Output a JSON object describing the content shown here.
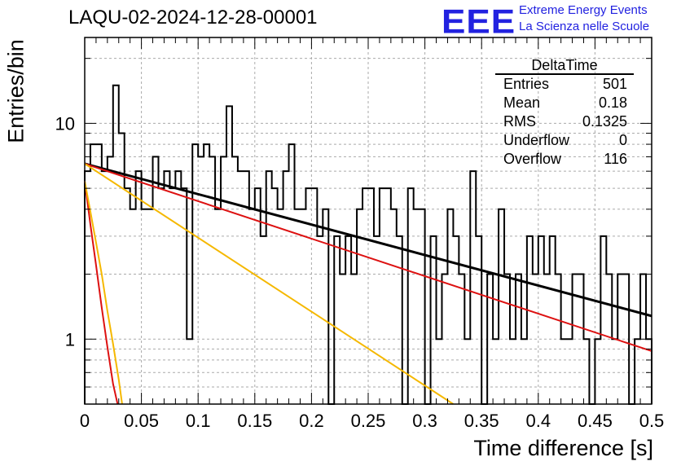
{
  "chart_data": {
    "type": "histogram",
    "title": "LAQU-02-2024-12-28-00001",
    "xlabel": "Time difference [s]",
    "ylabel": "Entries/bin",
    "xlim": [
      0,
      0.5
    ],
    "ylim": [
      0.5,
      25
    ],
    "yscale": "log",
    "grid": true,
    "x_ticks": [
      "0",
      "0.05",
      "0.1",
      "0.15",
      "0.2",
      "0.25",
      "0.3",
      "0.35",
      "0.4",
      "0.45",
      "0.5"
    ],
    "y_ticks": [
      "1",
      "10"
    ],
    "bin_width": 0.005,
    "bins": [
      [
        0.0,
        6
      ],
      [
        0.005,
        8
      ],
      [
        0.01,
        8
      ],
      [
        0.015,
        6
      ],
      [
        0.02,
        7
      ],
      [
        0.025,
        15
      ],
      [
        0.03,
        9
      ],
      [
        0.035,
        5
      ],
      [
        0.04,
        4
      ],
      [
        0.045,
        6
      ],
      [
        0.05,
        4
      ],
      [
        0.055,
        4
      ],
      [
        0.06,
        7
      ],
      [
        0.065,
        5
      ],
      [
        0.07,
        6
      ],
      [
        0.075,
        5
      ],
      [
        0.08,
        6
      ],
      [
        0.085,
        5
      ],
      [
        0.09,
        1
      ],
      [
        0.095,
        8
      ],
      [
        0.1,
        7
      ],
      [
        0.105,
        8
      ],
      [
        0.11,
        7
      ],
      [
        0.115,
        4
      ],
      [
        0.12,
        7
      ],
      [
        0.125,
        12
      ],
      [
        0.13,
        7
      ],
      [
        0.135,
        6
      ],
      [
        0.14,
        6
      ],
      [
        0.145,
        4
      ],
      [
        0.15,
        5
      ],
      [
        0.155,
        3
      ],
      [
        0.16,
        6
      ],
      [
        0.165,
        5
      ],
      [
        0.17,
        4
      ],
      [
        0.175,
        6
      ],
      [
        0.18,
        8
      ],
      [
        0.185,
        4
      ],
      [
        0.19,
        4
      ],
      [
        0.195,
        5
      ],
      [
        0.2,
        5
      ],
      [
        0.205,
        3
      ],
      [
        0.21,
        4
      ],
      [
        0.215,
        0.1
      ],
      [
        0.22,
        3
      ],
      [
        0.225,
        2
      ],
      [
        0.23,
        3
      ],
      [
        0.235,
        2
      ],
      [
        0.24,
        4
      ],
      [
        0.245,
        5
      ],
      [
        0.25,
        5
      ],
      [
        0.255,
        3
      ],
      [
        0.26,
        5
      ],
      [
        0.265,
        5
      ],
      [
        0.27,
        4
      ],
      [
        0.275,
        3
      ],
      [
        0.28,
        0.1
      ],
      [
        0.285,
        5
      ],
      [
        0.29,
        4
      ],
      [
        0.295,
        4
      ],
      [
        0.3,
        0.1
      ],
      [
        0.305,
        3
      ],
      [
        0.31,
        1
      ],
      [
        0.315,
        2
      ],
      [
        0.32,
        4
      ],
      [
        0.325,
        3
      ],
      [
        0.33,
        2
      ],
      [
        0.335,
        1
      ],
      [
        0.34,
        6
      ],
      [
        0.345,
        3
      ],
      [
        0.35,
        0.1
      ],
      [
        0.355,
        2
      ],
      [
        0.36,
        1
      ],
      [
        0.365,
        4
      ],
      [
        0.37,
        2
      ],
      [
        0.375,
        1
      ],
      [
        0.38,
        2
      ],
      [
        0.385,
        1
      ],
      [
        0.39,
        3
      ],
      [
        0.395,
        2
      ],
      [
        0.4,
        3
      ],
      [
        0.405,
        2
      ],
      [
        0.41,
        3
      ],
      [
        0.415,
        2
      ],
      [
        0.42,
        1
      ],
      [
        0.425,
        1
      ],
      [
        0.43,
        2
      ],
      [
        0.435,
        2
      ],
      [
        0.44,
        1
      ],
      [
        0.445,
        0.1
      ],
      [
        0.45,
        1
      ],
      [
        0.455,
        3
      ],
      [
        0.46,
        2
      ],
      [
        0.465,
        1
      ],
      [
        0.47,
        2
      ],
      [
        0.475,
        2
      ],
      [
        0.48,
        0.1
      ],
      [
        0.485,
        1
      ],
      [
        0.49,
        2
      ],
      [
        0.495,
        1
      ]
    ],
    "curves": [
      {
        "color": "#000000",
        "width": 3,
        "x": [
          0,
          0.5
        ],
        "y": [
          6.5,
          1.28
        ]
      },
      {
        "color": "#dd1111",
        "width": 2,
        "x": [
          0,
          0.5
        ],
        "y": [
          6.5,
          0.88
        ]
      },
      {
        "color": "#f5b800",
        "width": 2,
        "x": [
          0,
          0.325
        ],
        "y": [
          6.5,
          0.5
        ]
      },
      {
        "color": "#dd1111",
        "width": 2,
        "x": [
          0,
          0.005,
          0.01,
          0.015,
          0.02,
          0.025,
          0.029
        ],
        "y": [
          5.4,
          3.4,
          2.2,
          1.4,
          0.92,
          0.62,
          0.5
        ]
      },
      {
        "color": "#f5b800",
        "width": 2,
        "x": [
          0,
          0.005,
          0.01,
          0.015,
          0.02,
          0.025,
          0.03,
          0.033
        ],
        "y": [
          5.4,
          3.9,
          2.8,
          2.0,
          1.35,
          0.95,
          0.65,
          0.5
        ]
      }
    ]
  },
  "logo": {
    "mark": "EEE",
    "line1": "Extreme Energy Events",
    "line2": "La Scienza nelle Scuole"
  },
  "stats": {
    "title": "DeltaTime",
    "rows": [
      {
        "label": "Entries",
        "value": "501"
      },
      {
        "label": "Mean",
        "value": "0.18"
      },
      {
        "label": "RMS",
        "value": "0.1325"
      },
      {
        "label": "Underflow",
        "value": "0"
      },
      {
        "label": "Overflow",
        "value": "116"
      }
    ]
  },
  "colors": {
    "logo": "#2222e0"
  }
}
